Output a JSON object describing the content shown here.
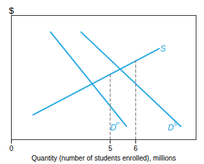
{
  "chart_data": {
    "type": "line",
    "xlabel": "Quantity (number of students enrolled), millions",
    "ylabel": "$",
    "xlim": [
      0,
      8.5
    ],
    "ylim": [
      0,
      7.5
    ],
    "xticks": [
      0,
      {
        "value": 4.55,
        "label": "5"
      },
      {
        "value": 5.72,
        "label": "6"
      }
    ],
    "yticks": [],
    "tick_labels": "x",
    "grid": false,
    "series": [
      {
        "x": [
          1.0,
          6.8
        ],
        "values": [
          1.5,
          5.5
        ],
        "color": "#29aae2",
        "line_style": "solid"
      },
      {
        "x": [
          1.8,
          5.3
        ],
        "values": [
          6.5,
          0.8
        ],
        "color": "#29aae2",
        "line_style": "solid"
      },
      {
        "x": [
          3.2,
          7.8
        ],
        "values": [
          6.5,
          0.8
        ],
        "color": "#29aae2",
        "line_style": "solid"
      },
      {
        "x": [
          4.55,
          4.55
        ],
        "values": [
          0,
          3.948275862
        ],
        "color": "#666666",
        "line_style": "dashed"
      },
      {
        "x": [
          5.72,
          5.72
        ],
        "values": [
          0,
          4.755172414
        ],
        "color": "#666666",
        "line_style": "dashed"
      }
    ],
    "annotations": [
      {
        "text": "S",
        "x": 6.85,
        "y": 5.5,
        "color": "#29aae2"
      },
      {
        "text": "D",
        "superscript": "P",
        "x": 4.55,
        "y": 0.55,
        "color": "#29aae2"
      },
      {
        "text": "D",
        "superscript": "S",
        "x": 7.2,
        "y": 0.55,
        "color": "#29aae2"
      }
    ]
  }
}
